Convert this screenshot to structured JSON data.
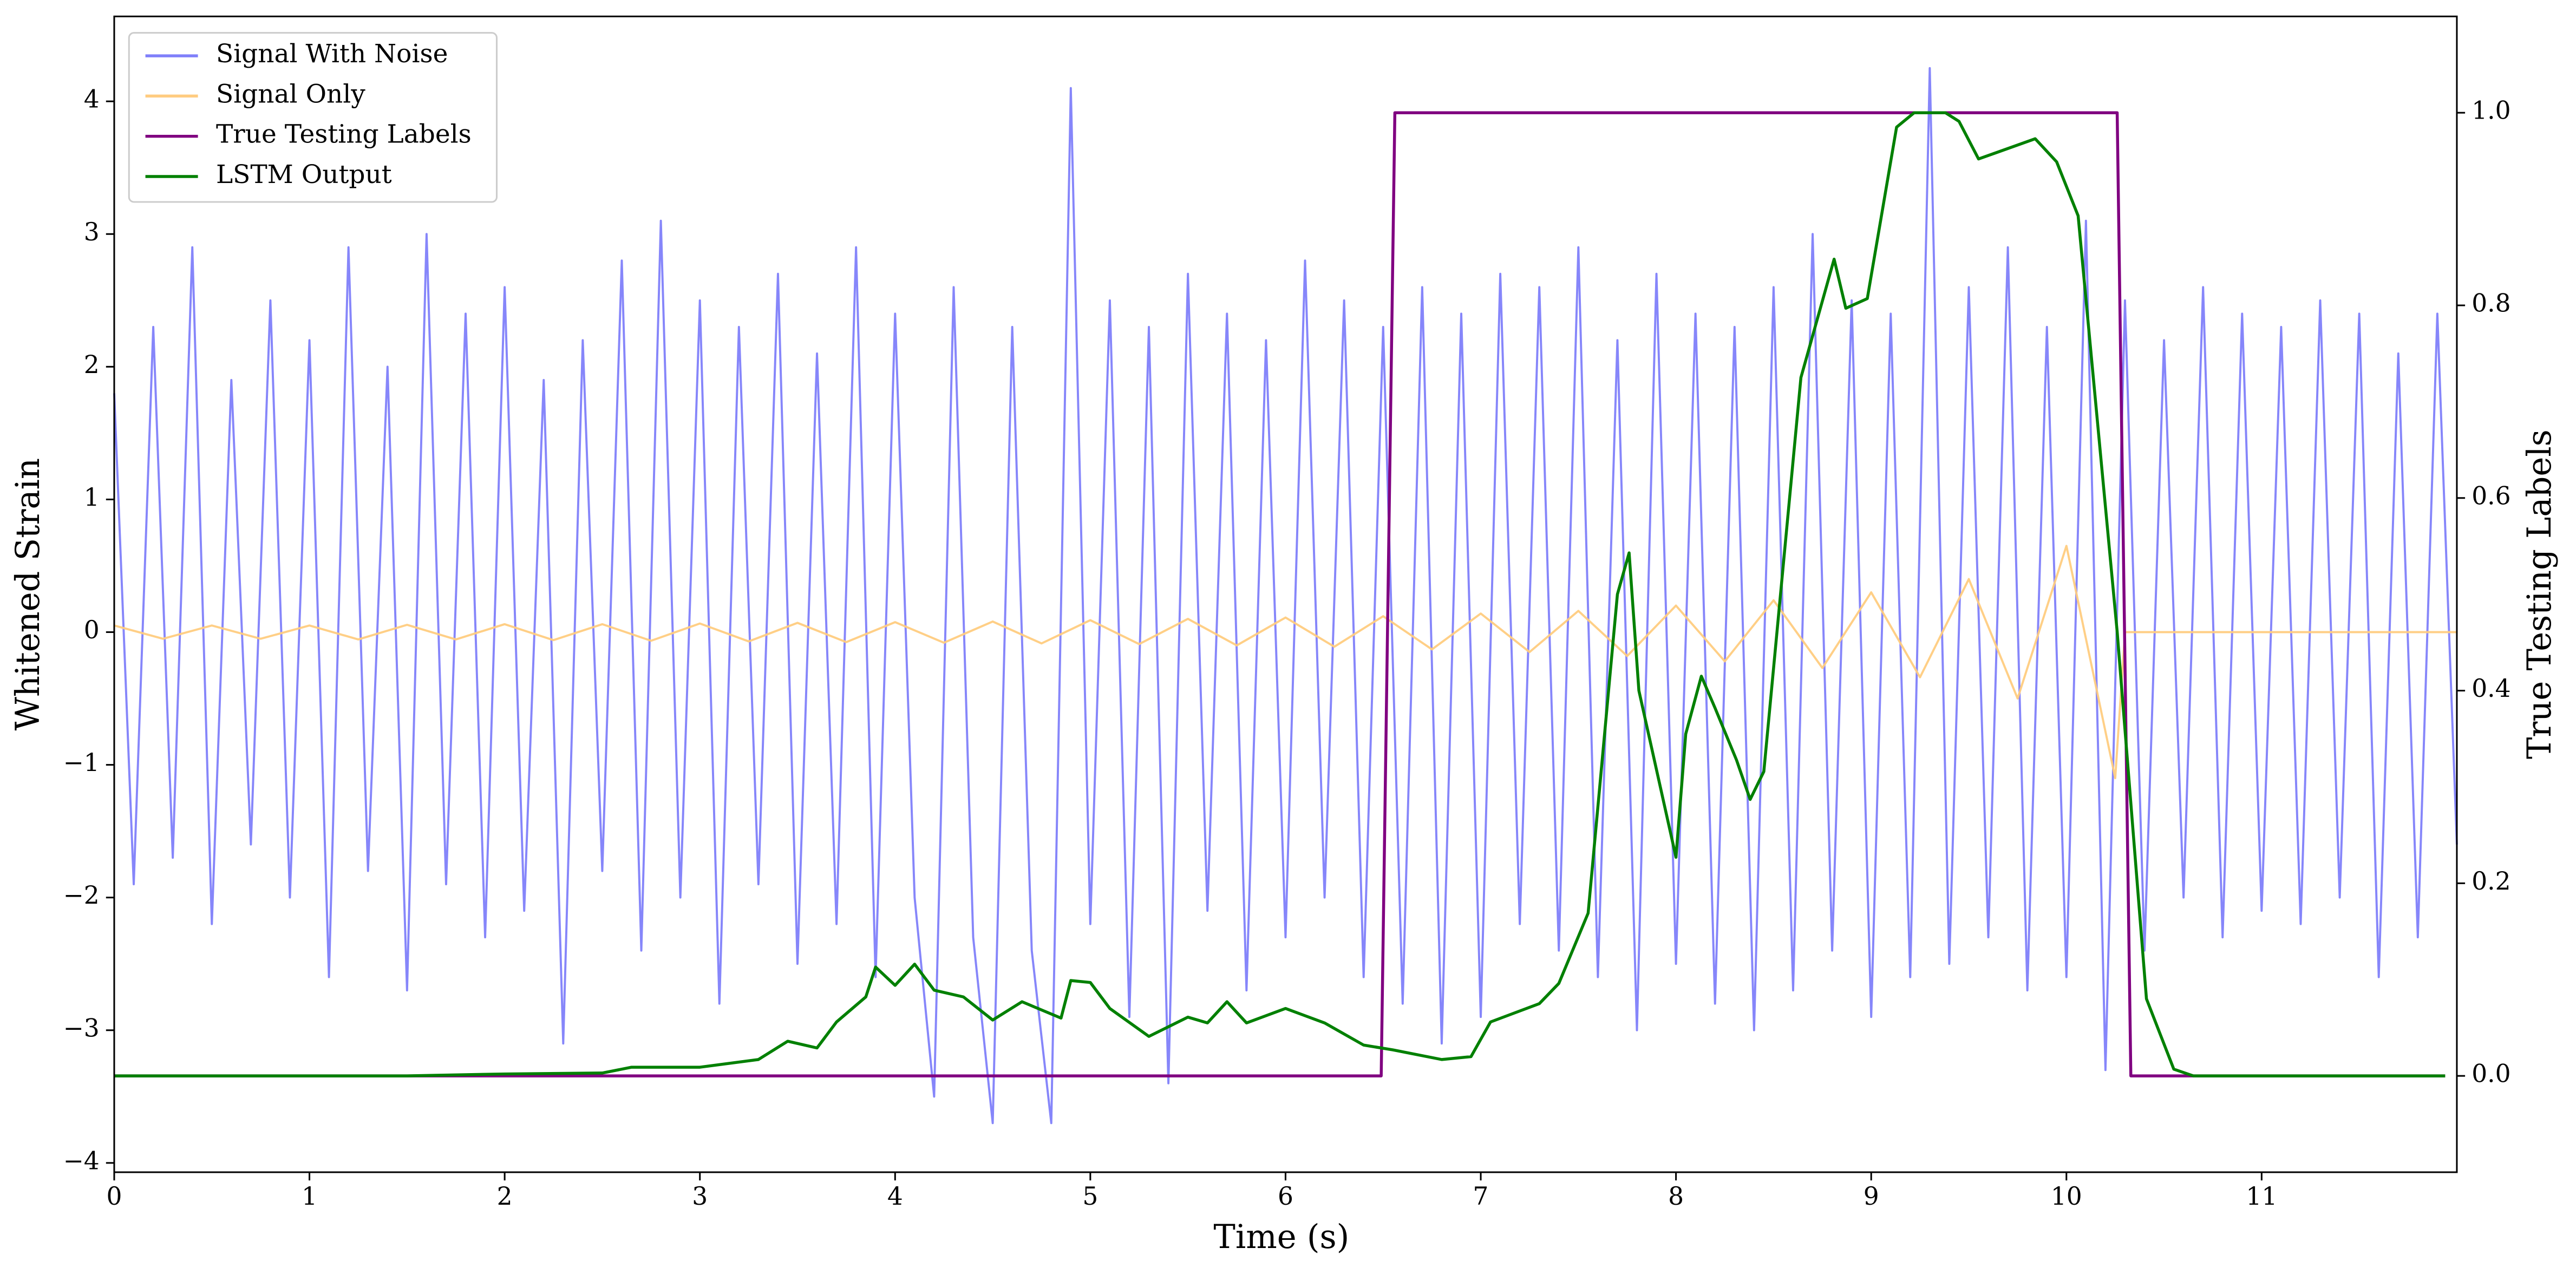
{
  "chart_data": {
    "type": "line",
    "xlabel": "Time (s)",
    "ylabel": "Whitened Strain",
    "y2label": "True Testing Labels",
    "xlim": [
      0,
      12
    ],
    "ylim": [
      -4.07,
      4.64
    ],
    "y2lim": [
      -0.1,
      1.1
    ],
    "xticks": [
      0,
      1,
      2,
      3,
      4,
      5,
      6,
      7,
      8,
      9,
      10,
      11
    ],
    "yticks": [
      {
        "value": -4,
        "label": "−4"
      },
      {
        "value": -3,
        "label": "−3"
      },
      {
        "value": -2,
        "label": "−2"
      },
      {
        "value": -1,
        "label": "−1"
      },
      0,
      1,
      2,
      3,
      4
    ],
    "y2ticks": [
      {
        "value": 0,
        "label": "0.0"
      },
      0.2,
      0.4,
      0.6,
      0.8,
      {
        "value": 1,
        "label": "1.0"
      }
    ],
    "legend": "upper left",
    "series": [
      {
        "name": "Signal With Noise",
        "color": "#8080fa",
        "axis": "y",
        "x": [
          0,
          0.1,
          0.2,
          0.3,
          0.4,
          0.5,
          0.6,
          0.7,
          0.8,
          0.9,
          1.0,
          1.1,
          1.2,
          1.3,
          1.4,
          1.5,
          1.6,
          1.7,
          1.8,
          1.9,
          2.0,
          2.1,
          2.2,
          2.3,
          2.4,
          2.5,
          2.6,
          2.7,
          2.8,
          2.9,
          3.0,
          3.1,
          3.2,
          3.3,
          3.4,
          3.5,
          3.6,
          3.7,
          3.8,
          3.9,
          4.0,
          4.1,
          4.2,
          4.3,
          4.4,
          4.5,
          4.6,
          4.7,
          4.8,
          4.9,
          5.0,
          5.1,
          5.2,
          5.3,
          5.4,
          5.5,
          5.6,
          5.7,
          5.8,
          5.9,
          6.0,
          6.1,
          6.2,
          6.3,
          6.4,
          6.5,
          6.6,
          6.7,
          6.8,
          6.9,
          7.0,
          7.1,
          7.2,
          7.3,
          7.4,
          7.5,
          7.6,
          7.7,
          7.8,
          7.9,
          8.0,
          8.1,
          8.2,
          8.3,
          8.4,
          8.5,
          8.6,
          8.7,
          8.8,
          8.9,
          9.0,
          9.1,
          9.2,
          9.3,
          9.4,
          9.5,
          9.6,
          9.7,
          9.8,
          9.9,
          10.0,
          10.1,
          10.2,
          10.3,
          10.4,
          10.5,
          10.6,
          10.7,
          10.8,
          10.9,
          11.0,
          11.1,
          11.2,
          11.3,
          11.4,
          11.5,
          11.6,
          11.7,
          11.8,
          11.9,
          12.0
        ],
        "values": [
          1.8,
          -1.9,
          2.3,
          -1.7,
          2.9,
          -2.2,
          1.9,
          -1.6,
          2.5,
          -2.0,
          2.2,
          -2.6,
          2.9,
          -1.8,
          2.0,
          -2.7,
          3.0,
          -1.9,
          2.4,
          -2.3,
          2.6,
          -2.1,
          1.9,
          -3.1,
          2.2,
          -1.8,
          2.8,
          -2.4,
          3.1,
          -2.0,
          2.5,
          -2.8,
          2.3,
          -1.9,
          2.7,
          -2.5,
          2.1,
          -2.2,
          2.9,
          -2.6,
          2.4,
          -2.0,
          -3.5,
          2.6,
          -2.3,
          -3.7,
          2.3,
          -2.4,
          -3.7,
          4.1,
          -2.2,
          2.5,
          -2.9,
          2.3,
          -3.4,
          2.7,
          -2.1,
          2.4,
          -2.7,
          2.2,
          -2.3,
          2.8,
          -2.0,
          2.5,
          -2.6,
          2.3,
          -2.8,
          2.6,
          -3.1,
          2.4,
          -2.9,
          2.7,
          -2.2,
          2.6,
          -2.4,
          2.9,
          -2.6,
          2.2,
          -3.0,
          2.7,
          -2.5,
          2.4,
          -2.8,
          2.3,
          -3.0,
          2.6,
          -2.7,
          3.0,
          -2.4,
          2.5,
          -2.9,
          2.4,
          -2.6,
          4.25,
          -2.5,
          2.6,
          -2.3,
          2.9,
          -2.7,
          2.3,
          -2.6,
          3.1,
          -3.3,
          2.5,
          -2.4,
          2.2,
          -2.0,
          2.6,
          -2.3,
          2.4,
          -2.1,
          2.3,
          -2.2,
          2.5,
          -2.0,
          2.4,
          -2.6,
          2.1,
          -2.3,
          2.4,
          -1.6
        ]
      },
      {
        "name": "Signal Only",
        "color": "#ffcc80",
        "axis": "y",
        "x": [
          0,
          0.25,
          0.5,
          0.75,
          1,
          1.25,
          1.5,
          1.75,
          2,
          2.25,
          2.5,
          2.75,
          3,
          3.25,
          3.5,
          3.75,
          4,
          4.25,
          4.5,
          4.75,
          5,
          5.25,
          5.5,
          5.75,
          6,
          6.25,
          6.5,
          6.75,
          7,
          7.25,
          7.5,
          7.75,
          8,
          8.25,
          8.5,
          8.75,
          9,
          9.25,
          9.5,
          9.75,
          10,
          10.25,
          10.3,
          12
        ],
        "values": [
          0.05,
          -0.05,
          0.05,
          -0.05,
          0.05,
          -0.055,
          0.055,
          -0.055,
          0.06,
          -0.06,
          0.06,
          -0.065,
          0.065,
          -0.07,
          0.07,
          -0.075,
          0.075,
          -0.08,
          0.08,
          -0.085,
          0.09,
          -0.09,
          0.1,
          -0.1,
          0.11,
          -0.11,
          0.12,
          -0.13,
          0.14,
          -0.15,
          0.16,
          -0.18,
          0.2,
          -0.22,
          0.24,
          -0.27,
          0.3,
          -0.34,
          0.4,
          -0.5,
          0.65,
          -1.1,
          0,
          0
        ]
      },
      {
        "name": "True Testing Labels",
        "color": "#800080",
        "axis": "y2",
        "x": [
          0,
          6.49,
          6.56,
          10.26,
          10.33,
          11.94
        ],
        "values": [
          0,
          0,
          1,
          1,
          0,
          0
        ]
      },
      {
        "name": "LSTM Output",
        "color": "#008000",
        "axis": "y2",
        "x": [
          0,
          1.5,
          2.0,
          2.5,
          2.65,
          3.0,
          3.3,
          3.45,
          3.6,
          3.7,
          3.85,
          3.9,
          4.0,
          4.1,
          4.2,
          4.35,
          4.5,
          4.65,
          4.85,
          4.9,
          5.0,
          5.1,
          5.3,
          5.5,
          5.6,
          5.7,
          5.8,
          6.0,
          6.2,
          6.4,
          6.55,
          6.8,
          6.95,
          7.05,
          7.3,
          7.4,
          7.55,
          7.7,
          7.76,
          7.81,
          8.0,
          8.05,
          8.13,
          8.2,
          8.31,
          8.38,
          8.45,
          8.64,
          8.81,
          8.87,
          8.98,
          9.13,
          9.22,
          9.38,
          9.45,
          9.55,
          9.84,
          9.95,
          10.06,
          10.26,
          10.41,
          10.55,
          10.65,
          11.94
        ],
        "values": [
          0,
          0,
          0.002,
          0.003,
          0.009,
          0.009,
          0.017,
          0.036,
          0.029,
          0.056,
          0.082,
          0.113,
          0.094,
          0.116,
          0.089,
          0.082,
          0.058,
          0.077,
          0.06,
          0.099,
          0.097,
          0.07,
          0.041,
          0.061,
          0.055,
          0.077,
          0.055,
          0.07,
          0.055,
          0.032,
          0.027,
          0.017,
          0.02,
          0.056,
          0.075,
          0.096,
          0.169,
          0.5,
          0.543,
          0.4,
          0.227,
          0.355,
          0.415,
          0.382,
          0.328,
          0.287,
          0.316,
          0.725,
          0.848,
          0.797,
          0.807,
          0.985,
          1.0,
          1.0,
          0.991,
          0.952,
          0.973,
          0.949,
          0.893,
          0.461,
          0.08,
          0.007,
          0,
          0
        ]
      }
    ]
  }
}
